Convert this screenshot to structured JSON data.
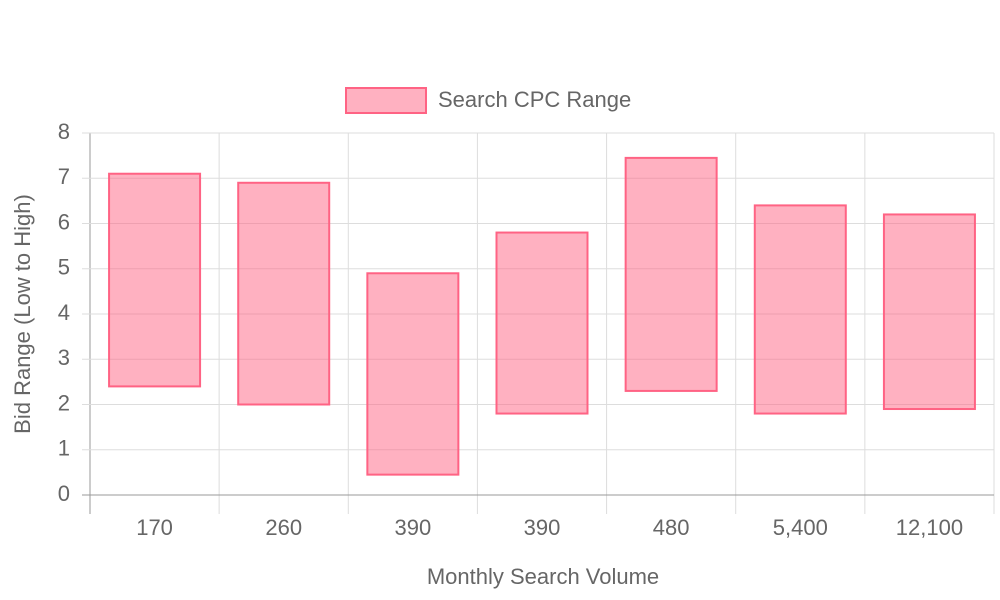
{
  "chart_data": {
    "type": "floating-bar",
    "x_label": "Monthly Search Volume",
    "y_label": "Bid Range (Low to High)",
    "categories": [
      "170",
      "260",
      "390",
      "390",
      "480",
      "5,400",
      "12,100"
    ],
    "series": [
      {
        "name": "Search CPC Range",
        "color": "#ff6384",
        "values": [
          [
            2.4,
            7.1
          ],
          [
            2.0,
            6.9
          ],
          [
            0.45,
            4.9
          ],
          [
            1.8,
            5.8
          ],
          [
            2.3,
            7.45
          ],
          [
            1.8,
            6.4
          ],
          [
            1.9,
            6.2
          ]
        ]
      }
    ],
    "ylim": [
      0,
      8
    ],
    "yticks": [
      0,
      1,
      2,
      3,
      4,
      5,
      6,
      7,
      8
    ],
    "grid": true,
    "legend": "top"
  }
}
